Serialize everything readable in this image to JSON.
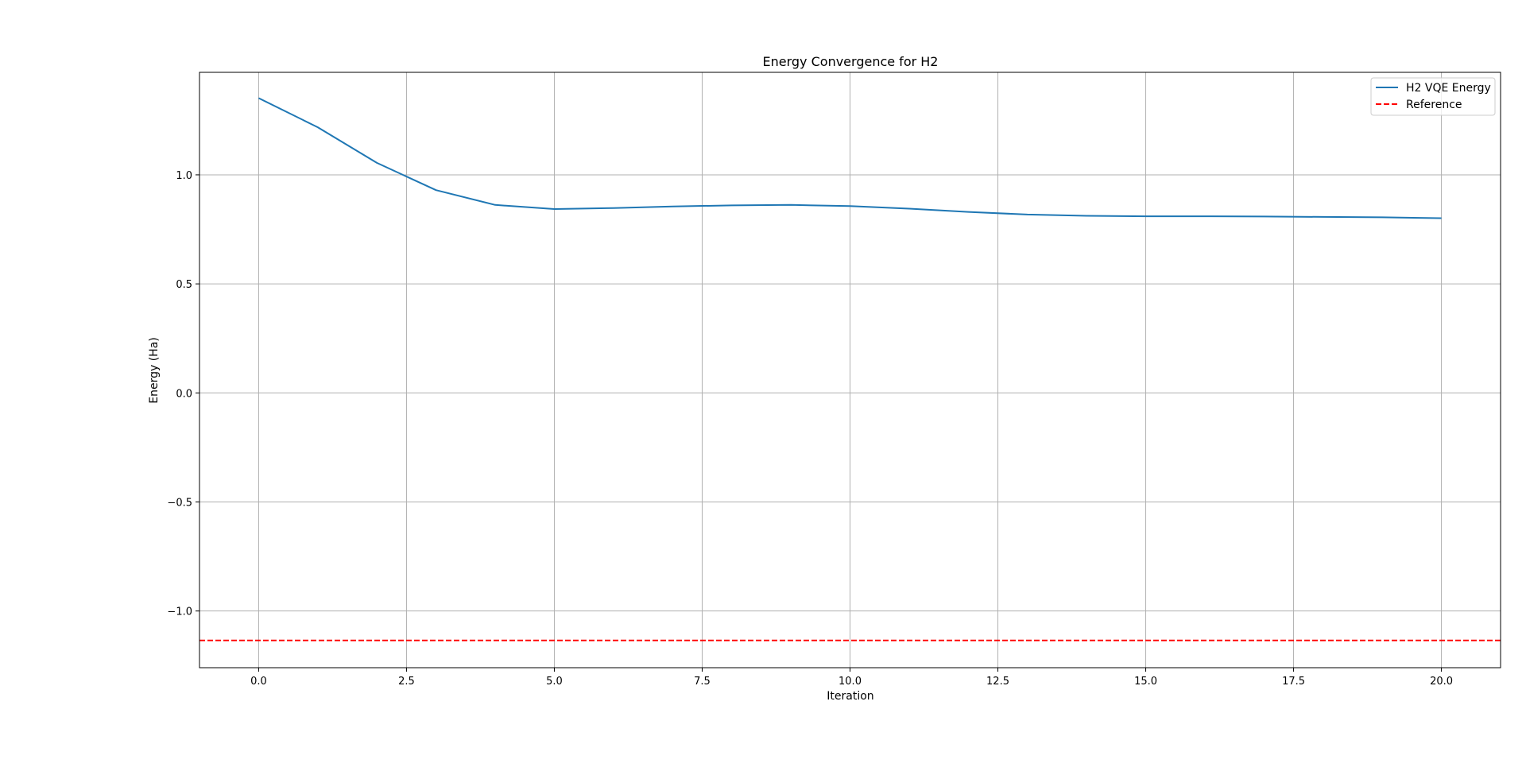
{
  "chart_data": {
    "type": "line",
    "title": "Energy Convergence for H2",
    "xlabel": "Iteration",
    "ylabel": "Energy (Ha)",
    "xlim": [
      -1.0,
      21.0
    ],
    "ylim": [
      -1.26,
      1.47
    ],
    "xticks": [
      0.0,
      2.5,
      5.0,
      7.5,
      10.0,
      12.5,
      15.0,
      17.5,
      20.0
    ],
    "xtick_labels": [
      "0.0",
      "2.5",
      "5.0",
      "7.5",
      "10.0",
      "12.5",
      "15.0",
      "17.5",
      "20.0"
    ],
    "yticks": [
      -1.0,
      -0.5,
      0.0,
      0.5,
      1.0
    ],
    "ytick_labels": [
      "−1.0",
      "−0.5",
      "0.0",
      "0.5",
      "1.0"
    ],
    "grid": true,
    "legend_position": "top-right",
    "series": [
      {
        "name": "H2 VQE Energy",
        "style": "solid",
        "color": "#1f77b4",
        "x": [
          0,
          1,
          2,
          3,
          4,
          5,
          6,
          7,
          8,
          9,
          10,
          11,
          12,
          13,
          14,
          15,
          16,
          17,
          18,
          19,
          20
        ],
        "y": [
          1.352,
          1.218,
          1.055,
          0.93,
          0.862,
          0.843,
          0.848,
          0.855,
          0.86,
          0.862,
          0.857,
          0.845,
          0.83,
          0.818,
          0.812,
          0.81,
          0.81,
          0.809,
          0.807,
          0.805,
          0.801
        ]
      },
      {
        "name": "Reference",
        "style": "dashed",
        "color": "#ff0000",
        "y_constant": -1.135
      }
    ]
  }
}
